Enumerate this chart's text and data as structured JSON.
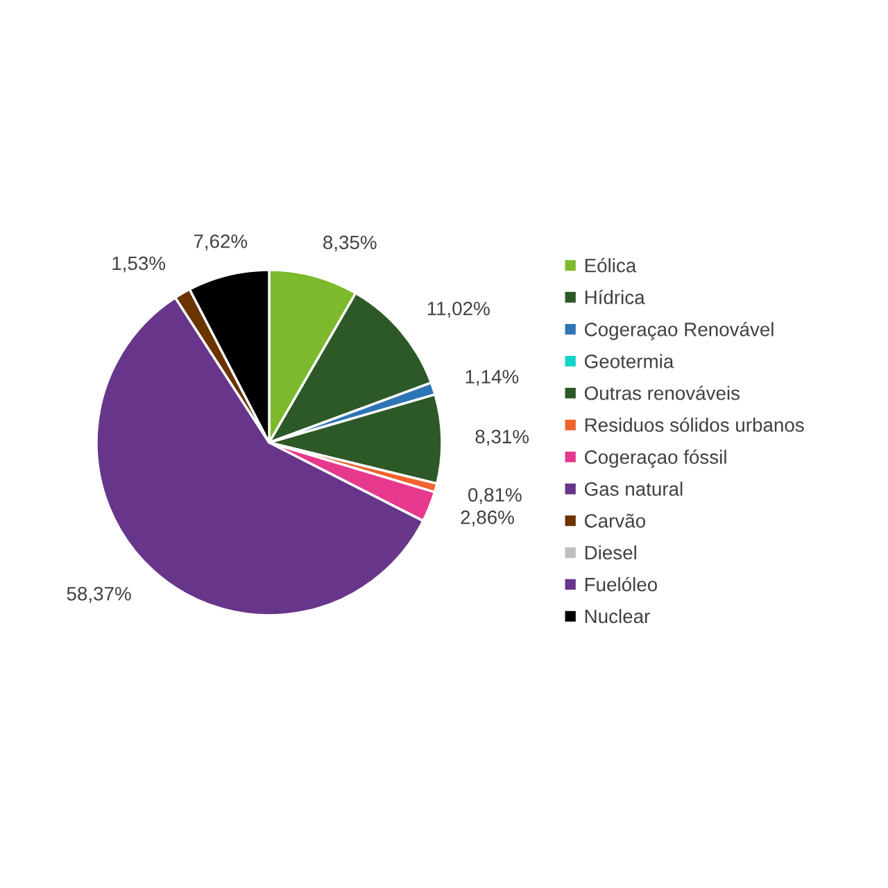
{
  "chart_data": {
    "type": "pie",
    "categories": [
      "Eólica",
      "Hídrica",
      "Cogeraçao Renovável",
      "Geotermia",
      "Outras renováveis",
      "Residuos sólidos urbanos",
      "Cogeraçao fóssil",
      "Gas natural",
      "Carvão",
      "Diesel",
      "Fuelóleo",
      "Nuclear"
    ],
    "values": [
      8.35,
      11.02,
      1.14,
      0,
      8.31,
      0.81,
      2.86,
      58.37,
      1.53,
      0,
      0,
      7.62
    ],
    "value_labels": [
      "8,35%",
      "11,02%",
      "1,14%",
      null,
      "8,31%",
      "0,81%",
      "2,86%",
      "58,37%",
      "1,53%",
      null,
      null,
      "7,62%"
    ],
    "colors": [
      "#7cb92c",
      "#2d5827",
      "#2e75b6",
      "#14d2c8",
      "#2d5827",
      "#f0622e",
      "#e6398d",
      "#67368a",
      "#6a3300",
      "#bfbfbf",
      "#67368a",
      "#000000"
    ],
    "legend": "right"
  }
}
